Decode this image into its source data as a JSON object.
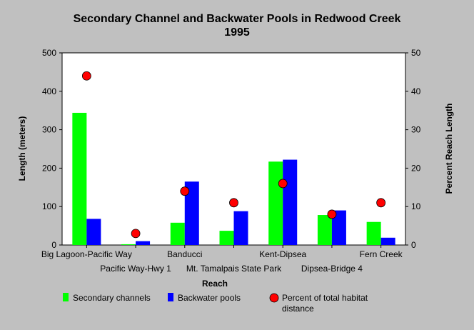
{
  "chart_data": {
    "type": "bar",
    "title": "Secondary Channel and Backwater Pools in Redwood Creek",
    "subtitle": "1995",
    "xlabel": "Reach",
    "ylabel": "Length (meters)",
    "y2label": "Percent Reach Length",
    "ylim": [
      0,
      500
    ],
    "y2lim": [
      0,
      50
    ],
    "yticks": [
      0,
      100,
      200,
      300,
      400,
      500
    ],
    "y2ticks": [
      0,
      10,
      20,
      30,
      40,
      50
    ],
    "grid": false,
    "legend_position": "bottom",
    "categories": [
      "Big Lagoon-Pacific Way",
      "Pacific Way-Hwy 1",
      "Banducci",
      "Mt. Tamalpais State Park",
      "Kent-Dipsea",
      "Dipsea-Bridge 4",
      "Fern Creek"
    ],
    "series": [
      {
        "name": "Secondary channels",
        "type": "bar",
        "axis": "left",
        "color": "#00ff00",
        "values": [
          344,
          2,
          58,
          37,
          217,
          78,
          60
        ]
      },
      {
        "name": "Backwater pools",
        "type": "bar",
        "axis": "left",
        "color": "#0000ff",
        "values": [
          68,
          10,
          165,
          88,
          222,
          90,
          19
        ]
      },
      {
        "name": "Percent of total habitat distance",
        "type": "scatter",
        "axis": "right",
        "color": "#ff0000",
        "values": [
          44,
          3,
          14,
          11,
          16,
          8,
          11
        ]
      }
    ]
  },
  "legend": {
    "items": [
      {
        "label_line1": "Secondary channels",
        "label_line2": "",
        "color": "#00ff00",
        "marker": "square"
      },
      {
        "label_line1": "Backwater pools",
        "label_line2": "",
        "color": "#0000ff",
        "marker": "square"
      },
      {
        "label_line1": "Percent of total habitat",
        "label_line2": "distance",
        "color": "#ff0000",
        "marker": "circle"
      }
    ]
  }
}
